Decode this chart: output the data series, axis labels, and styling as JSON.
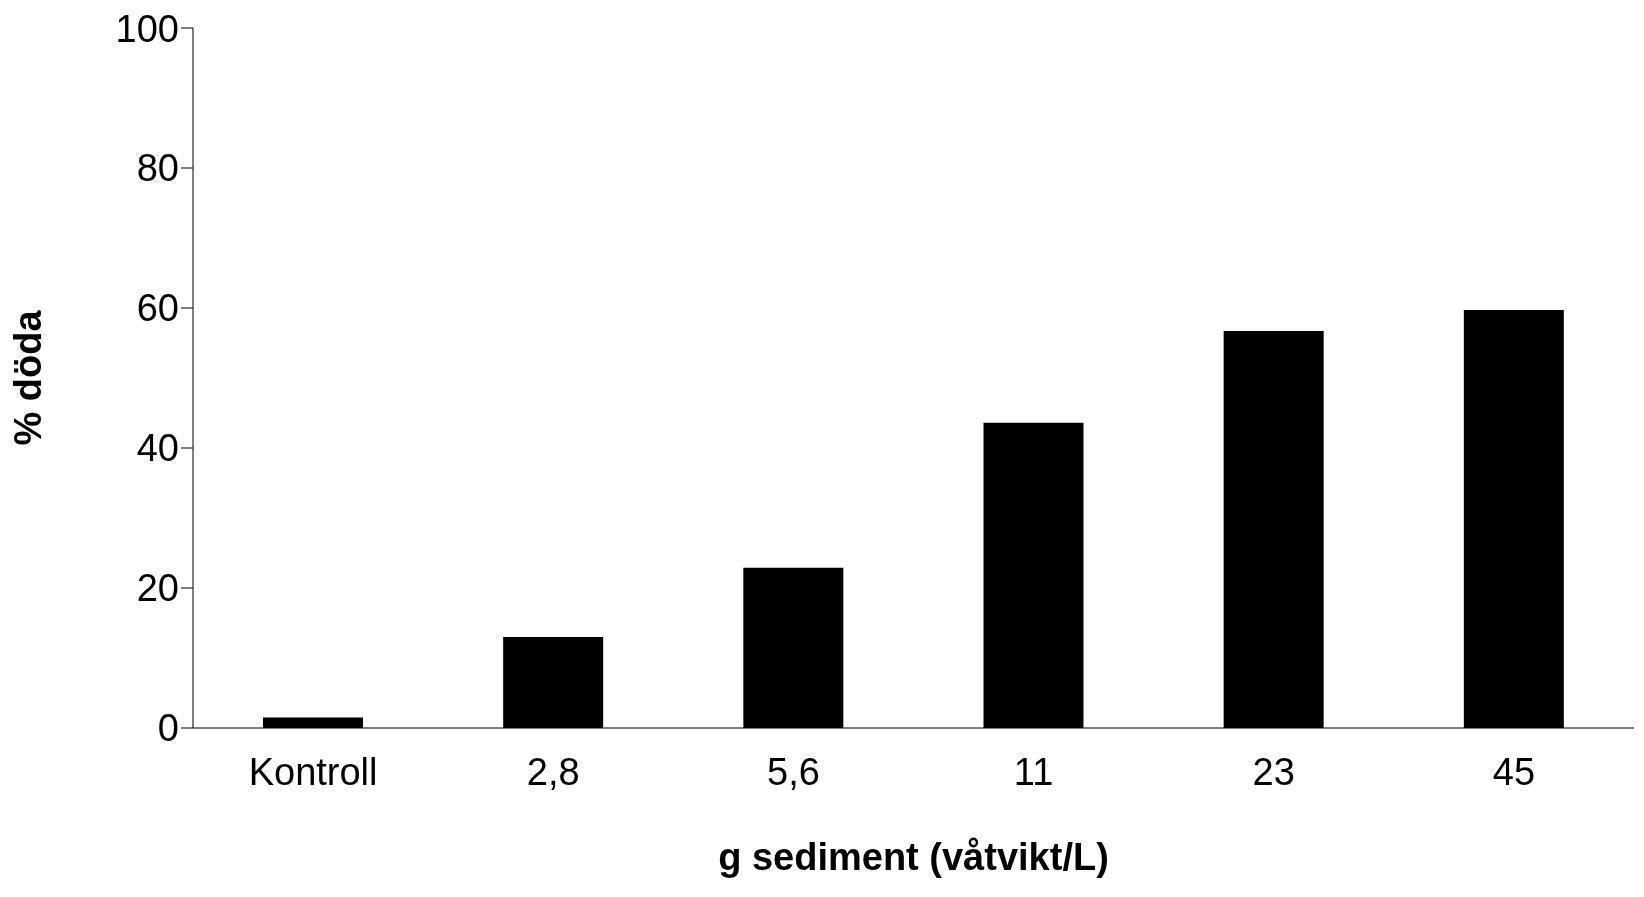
{
  "chart_data": {
    "type": "bar",
    "categories": [
      "Kontroll",
      "2,8",
      "5,6",
      "11",
      "23",
      "45"
    ],
    "values": [
      1.5,
      13,
      22.9,
      43.6,
      56.7,
      59.7
    ],
    "color": "#000000",
    "xlabel": "g sediment (våtvikt/L)",
    "ylabel": "% döda",
    "ylim": [
      0,
      100
    ],
    "yticks": [
      0,
      20,
      40,
      60,
      80,
      100
    ],
    "grid": false
  }
}
